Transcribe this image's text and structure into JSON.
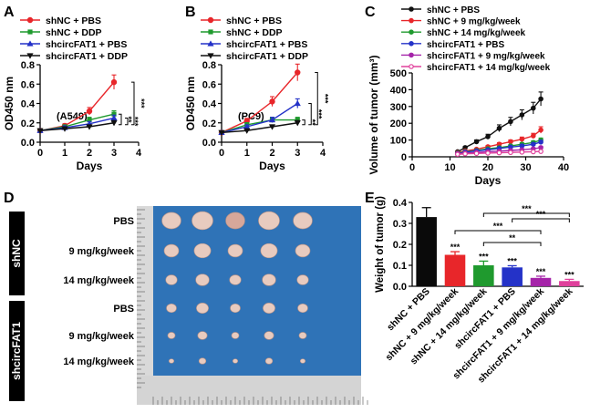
{
  "colors": {
    "red": "#e8262a",
    "green": "#1f9a2e",
    "blue": "#2432c8",
    "black": "#111111",
    "purple": "#a524a9",
    "pink": "#e0409c",
    "bar_black": "#0a0a0a",
    "bar_red": "#e8262a",
    "bar_green": "#1f9a2e",
    "bar_blue": "#2432c8",
    "bar_purple": "#a524a9",
    "bar_pink": "#e0409c",
    "photo_blue": "#2f73b7"
  },
  "panel_labels": [
    "A",
    "B",
    "C",
    "D",
    "E"
  ],
  "chart_data": [
    {
      "type": "line",
      "id": "A",
      "annotation": "(A549)",
      "xlabel": "Days",
      "ylabel": "OD450 nm",
      "xlim": [
        0,
        4
      ],
      "ylim": [
        0,
        0.8
      ],
      "xticks": [
        "0",
        "1",
        "2",
        "3",
        "4"
      ],
      "yticks": [
        "0.0",
        "0.2",
        "0.4",
        "0.6",
        "0.8"
      ],
      "x": [
        0,
        1,
        2,
        3
      ],
      "series": [
        {
          "name": "shNC + PBS",
          "color": "red",
          "marker": "circle",
          "values": [
            0.12,
            0.17,
            0.32,
            0.62
          ]
        },
        {
          "name": "shNC + DDP",
          "color": "green",
          "marker": "square",
          "values": [
            0.12,
            0.16,
            0.23,
            0.29
          ]
        },
        {
          "name": "shcircFAT1 + PBS",
          "color": "blue",
          "marker": "triangle",
          "values": [
            0.12,
            0.15,
            0.19,
            0.25
          ]
        },
        {
          "name": "shcircFAT1 + DDP",
          "color": "black",
          "marker": "triangle-down",
          "values": [
            0.12,
            0.14,
            0.16,
            0.2
          ]
        }
      ],
      "significance": [
        "***",
        "**",
        "***"
      ]
    },
    {
      "type": "line",
      "id": "B",
      "annotation": "(PC9)",
      "xlabel": "Days",
      "ylabel": "OD450 nm",
      "xlim": [
        0,
        4
      ],
      "ylim": [
        0,
        0.8
      ],
      "xticks": [
        "0",
        "1",
        "2",
        "3",
        "4"
      ],
      "yticks": [
        "0.0",
        "0.2",
        "0.4",
        "0.6",
        "0.8"
      ],
      "x": [
        0,
        1,
        2,
        3
      ],
      "series": [
        {
          "name": "shNC + PBS",
          "color": "red",
          "marker": "circle",
          "values": [
            0.1,
            0.22,
            0.42,
            0.72
          ]
        },
        {
          "name": "shNC + DDP",
          "color": "green",
          "marker": "square",
          "values": [
            0.1,
            0.18,
            0.23,
            0.23
          ]
        },
        {
          "name": "shcircFAT1 + PBS",
          "color": "blue",
          "marker": "triangle",
          "values": [
            0.1,
            0.16,
            0.23,
            0.4
          ]
        },
        {
          "name": "shcircFAT1 + DDP",
          "color": "black",
          "marker": "triangle-down",
          "values": [
            0.1,
            0.12,
            0.16,
            0.2
          ]
        }
      ],
      "significance": [
        "***",
        "**",
        "***"
      ]
    },
    {
      "type": "line",
      "id": "C",
      "xlabel": "Days",
      "ylabel": "Volume of tumor (mm³)",
      "xlim": [
        0,
        40
      ],
      "ylim": [
        0,
        500
      ],
      "xticks": [
        "0",
        "10",
        "20",
        "30",
        "40"
      ],
      "yticks": [
        "0",
        "100",
        "200",
        "300",
        "400",
        "500"
      ],
      "x": [
        12,
        14,
        17,
        20,
        23,
        26,
        29,
        32,
        34
      ],
      "series": [
        {
          "name": "shNC + PBS",
          "color": "black",
          "marker": "circle",
          "values": [
            30,
            55,
            90,
            120,
            170,
            210,
            250,
            290,
            345
          ]
        },
        {
          "name": "shNC + 9 mg/kg/week",
          "color": "red",
          "marker": "circle",
          "values": [
            25,
            35,
            45,
            60,
            75,
            90,
            105,
            125,
            160
          ]
        },
        {
          "name": "shNC + 14 mg/kg/week",
          "color": "green",
          "marker": "circle",
          "values": [
            22,
            30,
            38,
            48,
            55,
            65,
            75,
            85,
            100
          ]
        },
        {
          "name": "shcircFAT1 + PBS",
          "color": "blue",
          "marker": "circle",
          "values": [
            20,
            28,
            35,
            42,
            50,
            58,
            65,
            75,
            88
          ]
        },
        {
          "name": "shcircFAT1 + 9 mg/kg/week",
          "color": "purple",
          "marker": "circle",
          "values": [
            18,
            22,
            26,
            30,
            34,
            38,
            42,
            48,
            55
          ]
        },
        {
          "name": "shcircFAT1 + 14 mg/kg/week",
          "color": "pink",
          "marker": "circle",
          "values": [
            15,
            18,
            20,
            22,
            24,
            26,
            28,
            30,
            32
          ]
        }
      ]
    },
    {
      "type": "bar",
      "id": "E",
      "ylabel": "Weight of tumor (g)",
      "ylim": [
        0,
        0.4
      ],
      "yticks": [
        "0.0",
        "0.1",
        "0.2",
        "0.3",
        "0.4"
      ],
      "categories": [
        "shNC + PBS",
        "shNC + 9 mg/kg/week",
        "shNC + 14 mg/kg/week",
        "shcircFAT1 + PBS",
        "shcircFAT1 + 9 mg/kg/week",
        "shcircFAT1 + 14 mg/kg/week"
      ],
      "values": [
        0.33,
        0.15,
        0.1,
        0.09,
        0.04,
        0.025
      ],
      "errors": [
        0.045,
        0.015,
        0.02,
        0.008,
        0.008,
        0.008
      ],
      "colors": [
        "bar_black",
        "bar_red",
        "bar_green",
        "bar_blue",
        "bar_purple",
        "bar_pink"
      ],
      "bar_stars": [
        "",
        "***",
        "***",
        "***",
        "***",
        "***"
      ],
      "comparisons": [
        {
          "from": 2,
          "to": 5,
          "label": "***"
        },
        {
          "from": 3,
          "to": 5,
          "label": "***"
        },
        {
          "from": 1,
          "to": 4,
          "label": "***"
        },
        {
          "from": 2,
          "to": 4,
          "label": "**"
        }
      ]
    }
  ],
  "photo": {
    "groups": [
      "shNC",
      "shcircFAT1"
    ],
    "row_labels": [
      "PBS",
      "9 mg/kg/week",
      "14 mg/kg/week",
      "PBS",
      "9 mg/kg/week",
      "14 mg/kg/week"
    ],
    "tumor_sizes": [
      1.0,
      0.78,
      0.62,
      0.55,
      0.42,
      0.3
    ]
  }
}
